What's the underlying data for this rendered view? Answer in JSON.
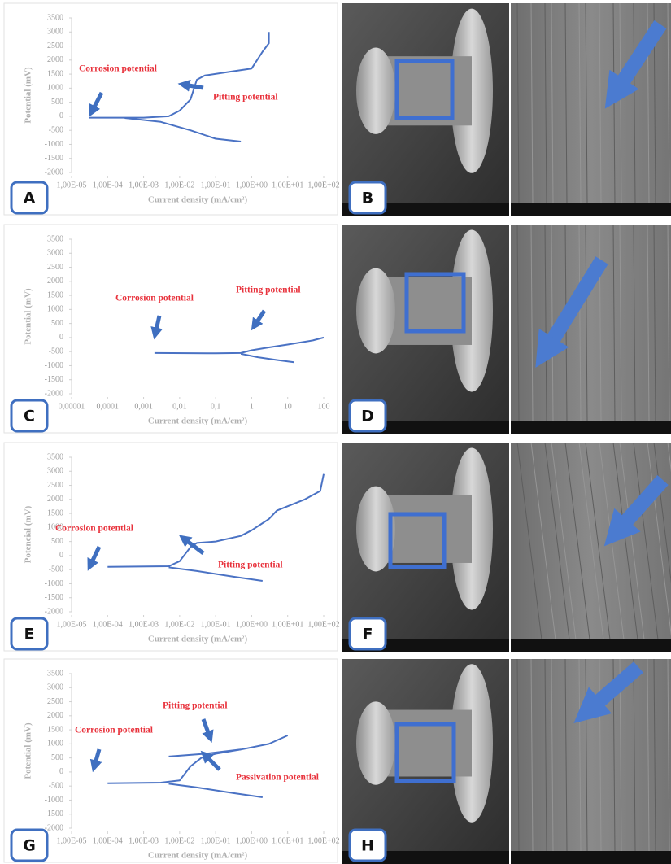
{
  "panel_labels": [
    "A",
    "B",
    "C",
    "D",
    "E",
    "F",
    "G",
    "H"
  ],
  "chart_data": [
    {
      "type": "line",
      "xscale": "log",
      "x_label": "Current density (mA/cm²)",
      "y_label": "Potential (mV)",
      "xlim": [
        1e-05,
        100
      ],
      "ylim": [
        -2000,
        3500
      ],
      "xticks": [
        {
          "value": 1e-05,
          "label": "1,00E-05"
        },
        {
          "value": 0.0001,
          "label": "1,00E-04"
        },
        {
          "value": 0.001,
          "label": "1,00E-03"
        },
        {
          "value": 0.01,
          "label": "1,00E-02"
        },
        {
          "value": 0.1,
          "label": "1,00E-01"
        },
        {
          "value": 1,
          "label": "1,00E+00"
        },
        {
          "value": 10,
          "label": "1,00E+01"
        },
        {
          "value": 100,
          "label": "1,00E+02"
        }
      ],
      "yticks": [
        -2000,
        -1500,
        -1000,
        -500,
        0,
        500,
        1000,
        1500,
        2000,
        2500,
        3000,
        3500
      ],
      "annotations": [
        "Corrosion potential",
        "Pitting potential"
      ],
      "series": [
        {
          "color": "#4a72c4",
          "x": [
            3e-05,
            0.001,
            0.005,
            0.01,
            0.02,
            0.03,
            0.05,
            0.3,
            1,
            2,
            3,
            3
          ],
          "values": [
            -50,
            -50,
            0,
            200,
            600,
            1300,
            1450,
            1600,
            1700,
            2300,
            2600,
            3000
          ]
        },
        {
          "color": "#4a72c4",
          "x": [
            0.0003,
            0.003,
            0.02,
            0.1,
            0.5
          ],
          "values": [
            -60,
            -200,
            -500,
            -800,
            -900
          ]
        }
      ]
    },
    {
      "type": "line",
      "xscale": "log",
      "x_label": "Current density (mA/cm²)",
      "y_label": "Potential (mV)",
      "xlim": [
        1e-05,
        100
      ],
      "ylim": [
        -2000,
        3500
      ],
      "xticks": [
        {
          "value": 1e-05,
          "label": "0,00001"
        },
        {
          "value": 0.0001,
          "label": "0,0001"
        },
        {
          "value": 0.001,
          "label": "0,001"
        },
        {
          "value": 0.01,
          "label": "0,01"
        },
        {
          "value": 0.1,
          "label": "0,1"
        },
        1,
        10,
        100
      ],
      "yticks": [
        -2000,
        -1500,
        -1000,
        -500,
        0,
        500,
        1000,
        1500,
        2000,
        2500,
        3000,
        3500
      ],
      "annotations": [
        "Corrosion potential",
        "Pitting potential"
      ],
      "series": [
        {
          "color": "#4a72c4",
          "x": [
            0.002,
            0.1,
            0.5,
            1,
            3,
            10,
            50,
            100
          ],
          "values": [
            -550,
            -560,
            -550,
            -450,
            -350,
            -250,
            -100,
            0
          ]
        },
        {
          "color": "#4a72c4",
          "x": [
            0.5,
            1.5,
            5,
            15
          ],
          "values": [
            -580,
            -700,
            -800,
            -880
          ]
        }
      ]
    },
    {
      "type": "line",
      "xscale": "log",
      "x_label": "Current density (mA/cm²)",
      "y_label": "Potencial (mV)",
      "xlim": [
        1e-05,
        100
      ],
      "ylim": [
        -2000,
        3500
      ],
      "xticks": [
        {
          "value": 1e-05,
          "label": "1,00E-05"
        },
        {
          "value": 0.0001,
          "label": "1,00E-04"
        },
        {
          "value": 0.001,
          "label": "1,00E-03"
        },
        {
          "value": 0.01,
          "label": "1,00E-02"
        },
        {
          "value": 0.1,
          "label": "1,00E-01"
        },
        {
          "value": 1,
          "label": "1,00E+00"
        },
        {
          "value": 10,
          "label": "1,00E+01"
        },
        {
          "value": 100,
          "label": "1,00E+02"
        }
      ],
      "yticks": [
        -2000,
        -1500,
        -1000,
        -500,
        0,
        500,
        1000,
        1500,
        2000,
        2500,
        3000,
        3500
      ],
      "annotations": [
        "Corrosion potential",
        "Pitting potential"
      ],
      "series": [
        {
          "color": "#4a72c4",
          "x": [
            0.0001,
            0.005,
            0.01,
            0.02,
            0.03,
            0.1,
            0.5,
            1,
            3,
            5,
            30,
            80,
            100
          ],
          "values": [
            -400,
            -380,
            -200,
            300,
            450,
            500,
            700,
            900,
            1300,
            1600,
            2000,
            2300,
            2900
          ]
        },
        {
          "color": "#4a72c4",
          "x": [
            0.005,
            0.03,
            0.3,
            2
          ],
          "values": [
            -420,
            -550,
            -750,
            -900
          ]
        }
      ]
    },
    {
      "type": "line",
      "xscale": "log",
      "x_label": "Current density (mA/cm²)",
      "y_label": "Potential (mV)",
      "xlim": [
        1e-05,
        100
      ],
      "ylim": [
        -2000,
        3500
      ],
      "xticks": [
        {
          "value": 1e-05,
          "label": "1,00E-05"
        },
        {
          "value": 0.0001,
          "label": "1,00E-04"
        },
        {
          "value": 0.001,
          "label": "1,00E-03"
        },
        {
          "value": 0.01,
          "label": "1,00E-02"
        },
        {
          "value": 0.1,
          "label": "1,00E-01"
        },
        {
          "value": 1,
          "label": "1,00E+00"
        },
        {
          "value": 10,
          "label": "1,00E+01"
        },
        {
          "value": 100,
          "label": "1,00E+02"
        }
      ],
      "yticks": [
        -2000,
        -1500,
        -1000,
        -500,
        0,
        500,
        1000,
        1500,
        2000,
        2500,
        3000,
        3500
      ],
      "annotations": [
        "Pitting potential",
        "Corrosion potential",
        "Passivation potential"
      ],
      "series": [
        {
          "color": "#4a72c4",
          "x": [
            0.0001,
            0.003,
            0.01,
            0.02,
            0.04,
            0.1,
            0.5,
            3,
            10
          ],
          "values": [
            -400,
            -380,
            -300,
            200,
            500,
            650,
            800,
            1000,
            1300
          ]
        },
        {
          "color": "#4a72c4",
          "x": [
            0.005,
            0.03,
            0.3,
            2
          ],
          "values": [
            -420,
            -550,
            -750,
            -900
          ]
        },
        {
          "color": "#4a72c4",
          "x": [
            0.005,
            0.05,
            0.5
          ],
          "values": [
            550,
            650,
            800
          ]
        }
      ]
    }
  ]
}
